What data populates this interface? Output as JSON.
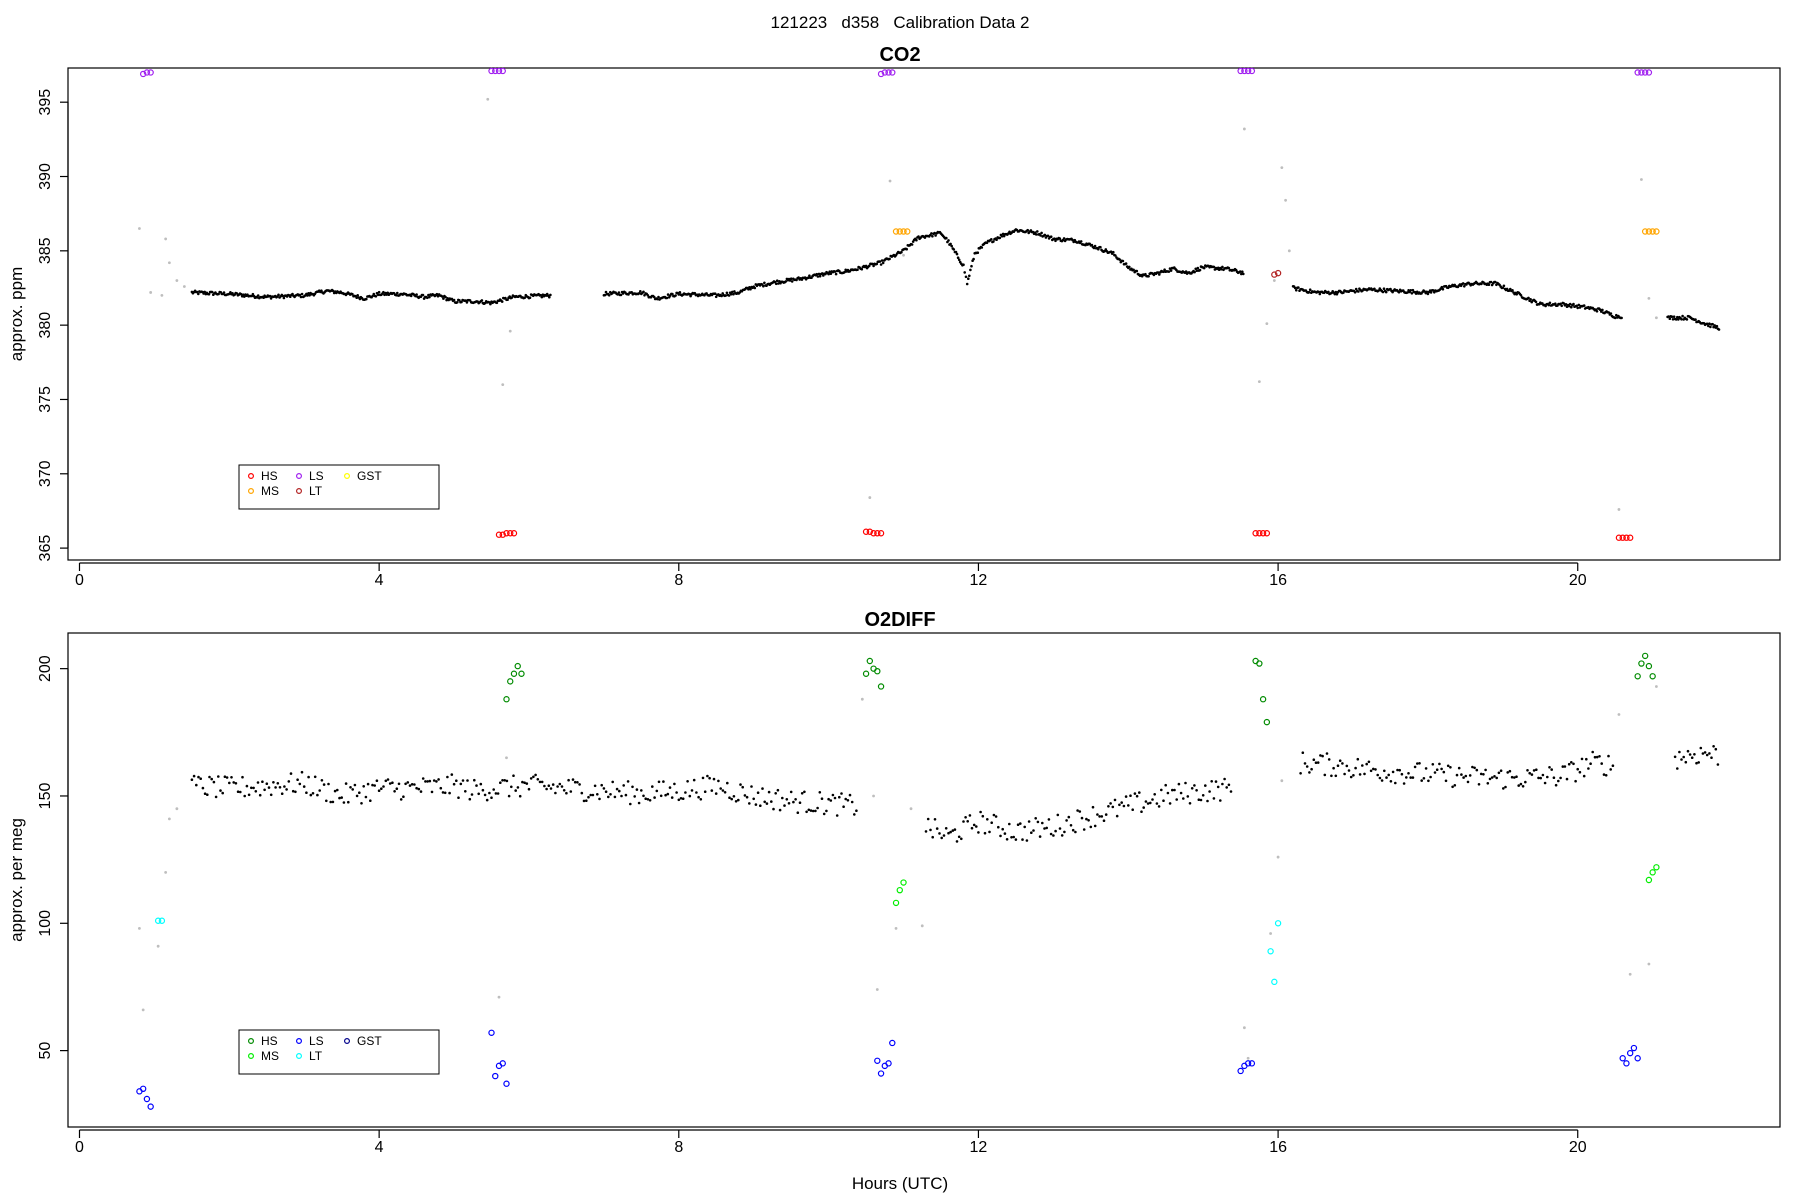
{
  "page_title": "121223   d358   Calibration Data 2",
  "xlabel": "Hours (UTC)",
  "chart_data": [
    {
      "type": "scatter",
      "title": "CO2",
      "xlabel": "",
      "ylabel": "approx. ppm",
      "xlim": [
        -0.1,
        22.7
      ],
      "ylim": [
        364.2,
        397.3
      ],
      "xticks": [
        0,
        4,
        8,
        12,
        16,
        20
      ],
      "yticks": [
        365,
        370,
        375,
        380,
        385,
        390,
        395
      ],
      "legend_position": "bottom-left",
      "legend": [
        {
          "label": "HS",
          "color": "#ff0000"
        },
        {
          "label": "MS",
          "color": "#ffa500"
        },
        {
          "label": "LS",
          "color": "#a020f0"
        },
        {
          "label": "LT",
          "color": "#b22222"
        },
        {
          "label": "GST",
          "color": "#ffff00"
        }
      ],
      "colors": {
        "ambient": "#000000",
        "flush": "#bebebe"
      },
      "ambient": [
        [
          1.5,
          382.2
        ],
        [
          2.0,
          382.1
        ],
        [
          2.5,
          381.9
        ],
        [
          3.0,
          382.0
        ],
        [
          3.3,
          382.3
        ],
        [
          3.5,
          382.2
        ],
        [
          3.8,
          381.8
        ],
        [
          4.0,
          382.1
        ],
        [
          4.3,
          382.1
        ],
        [
          4.6,
          381.9
        ],
        [
          4.8,
          382.0
        ],
        [
          5.0,
          381.6
        ],
        [
          5.3,
          381.6
        ],
        [
          5.5,
          381.5
        ],
        [
          5.8,
          381.9
        ],
        [
          6.3,
          382.0
        ],
        [
          7.0,
          382.1
        ],
        [
          7.5,
          382.2
        ],
        [
          7.7,
          381.8
        ],
        [
          8.0,
          382.1
        ],
        [
          8.5,
          382.0
        ],
        [
          8.8,
          382.2
        ],
        [
          9.0,
          382.6
        ],
        [
          9.3,
          382.9
        ],
        [
          9.6,
          383.1
        ],
        [
          10.0,
          383.5
        ],
        [
          10.2,
          383.6
        ],
        [
          10.4,
          383.8
        ],
        [
          10.7,
          384.2
        ],
        [
          11.0,
          385.0
        ],
        [
          11.2,
          385.9
        ],
        [
          11.5,
          386.2
        ],
        [
          11.6,
          385.6
        ],
        [
          11.8,
          384.0
        ],
        [
          11.85,
          382.8
        ],
        [
          11.95,
          384.8
        ],
        [
          12.1,
          385.5
        ],
        [
          12.3,
          386.0
        ],
        [
          12.5,
          386.4
        ],
        [
          12.8,
          386.2
        ],
        [
          13.0,
          385.8
        ],
        [
          13.3,
          385.7
        ],
        [
          13.6,
          385.2
        ],
        [
          13.8,
          384.8
        ],
        [
          14.0,
          383.9
        ],
        [
          14.2,
          383.3
        ],
        [
          14.4,
          383.5
        ],
        [
          14.6,
          383.8
        ],
        [
          14.8,
          383.5
        ],
        [
          15.0,
          383.9
        ],
        [
          15.3,
          383.8
        ],
        [
          15.55,
          383.5
        ],
        [
          16.2,
          382.5
        ],
        [
          16.5,
          382.2
        ],
        [
          16.8,
          382.2
        ],
        [
          17.2,
          382.4
        ],
        [
          17.6,
          382.3
        ],
        [
          18.0,
          382.2
        ],
        [
          18.3,
          382.6
        ],
        [
          18.6,
          382.8
        ],
        [
          18.9,
          382.8
        ],
        [
          19.2,
          382.1
        ],
        [
          19.5,
          381.4
        ],
        [
          19.8,
          381.4
        ],
        [
          20.1,
          381.2
        ],
        [
          20.3,
          381.0
        ],
        [
          20.5,
          380.6
        ],
        [
          20.6,
          380.6
        ],
        [
          21.2,
          380.5
        ],
        [
          21.5,
          380.5
        ],
        [
          21.7,
          380.1
        ],
        [
          21.9,
          379.8
        ]
      ],
      "flush": [
        [
          0.8,
          386.5
        ],
        [
          0.95,
          382.2
        ],
        [
          1.1,
          382.0
        ],
        [
          1.15,
          385.8
        ],
        [
          1.2,
          384.2
        ],
        [
          1.3,
          383.0
        ],
        [
          1.4,
          382.6
        ],
        [
          5.45,
          395.2
        ],
        [
          5.65,
          376.0
        ],
        [
          5.75,
          379.6
        ],
        [
          10.55,
          368.4
        ],
        [
          10.82,
          389.7
        ],
        [
          11.0,
          384.7
        ],
        [
          15.55,
          393.2
        ],
        [
          15.75,
          376.2
        ],
        [
          15.85,
          380.1
        ],
        [
          15.95,
          383.0
        ],
        [
          16.05,
          390.6
        ],
        [
          16.1,
          388.4
        ],
        [
          16.15,
          385.0
        ],
        [
          20.55,
          367.6
        ],
        [
          20.85,
          389.8
        ],
        [
          20.95,
          381.8
        ],
        [
          21.05,
          380.5
        ]
      ],
      "calibration": [
        {
          "label": "LS",
          "x": [
            0.85,
            0.9,
            0.95
          ],
          "y": [
            396.9,
            397.0,
            397.0
          ]
        },
        {
          "label": "HS",
          "x": [
            5.6,
            5.65,
            5.7,
            5.75,
            5.8
          ],
          "y": [
            365.9,
            365.9,
            366.0,
            366.0,
            366.0
          ]
        },
        {
          "label": "LS",
          "x": [
            5.5,
            5.55,
            5.6,
            5.65
          ],
          "y": [
            397.1,
            397.1,
            397.1,
            397.1
          ]
        },
        {
          "label": "LS",
          "x": [
            10.7,
            10.75,
            10.8,
            10.85
          ],
          "y": [
            396.9,
            397.0,
            397.0,
            397.0
          ]
        },
        {
          "label": "HS",
          "x": [
            10.5,
            10.55,
            10.6,
            10.65,
            10.7
          ],
          "y": [
            366.1,
            366.1,
            366.0,
            366.0,
            366.0
          ]
        },
        {
          "label": "MS",
          "x": [
            10.9,
            10.95,
            11.0,
            11.05
          ],
          "y": [
            386.3,
            386.3,
            386.3,
            386.3
          ]
        },
        {
          "label": "LS",
          "x": [
            15.5,
            15.55,
            15.6,
            15.65
          ],
          "y": [
            397.1,
            397.1,
            397.1,
            397.1
          ]
        },
        {
          "label": "HS",
          "x": [
            15.7,
            15.75,
            15.8,
            15.85
          ],
          "y": [
            366.0,
            366.0,
            366.0,
            366.0
          ]
        },
        {
          "label": "LT",
          "x": [
            15.95,
            16.0
          ],
          "y": [
            383.4,
            383.5
          ]
        },
        {
          "label": "LS",
          "x": [
            20.8,
            20.85,
            20.9,
            20.95
          ],
          "y": [
            397.0,
            397.0,
            397.0,
            397.0
          ]
        },
        {
          "label": "HS",
          "x": [
            20.55,
            20.6,
            20.65,
            20.7
          ],
          "y": [
            365.7,
            365.7,
            365.7,
            365.7
          ]
        },
        {
          "label": "MS",
          "x": [
            20.9,
            20.95,
            21.0,
            21.05
          ],
          "y": [
            386.3,
            386.3,
            386.3,
            386.3
          ]
        }
      ]
    },
    {
      "type": "scatter",
      "title": "O2DIFF",
      "xlabel": "Hours (UTC)",
      "ylabel": "approx. per meg",
      "xlim": [
        -0.1,
        22.7
      ],
      "ylim": [
        20,
        214
      ],
      "xticks": [
        0,
        4,
        8,
        12,
        16,
        20
      ],
      "yticks": [
        50,
        100,
        150,
        200
      ],
      "legend_position": "bottom-left",
      "legend": [
        {
          "label": "HS",
          "color": "#008b00"
        },
        {
          "label": "MS",
          "color": "#00ee00"
        },
        {
          "label": "LS",
          "color": "#0000ff"
        },
        {
          "label": "LT",
          "color": "#00ffff"
        },
        {
          "label": "GST",
          "color": "#00008b"
        }
      ],
      "colors": {
        "ambient": "#000000",
        "flush": "#bebebe"
      },
      "ambient": [
        [
          1.5,
          154
        ],
        [
          2.0,
          153
        ],
        [
          2.5,
          154
        ],
        [
          3.0,
          155
        ],
        [
          3.5,
          150
        ],
        [
          4.0,
          153
        ],
        [
          4.5,
          153
        ],
        [
          5.0,
          154
        ],
        [
          5.3,
          152
        ],
        [
          5.5,
          153
        ],
        [
          6.0,
          154
        ],
        [
          6.5,
          153
        ],
        [
          7.0,
          152
        ],
        [
          7.5,
          151
        ],
        [
          8.0,
          152
        ],
        [
          8.5,
          154
        ],
        [
          9.0,
          150
        ],
        [
          9.5,
          148
        ],
        [
          10.0,
          147
        ],
        [
          10.4,
          146
        ],
        [
          11.3,
          138
        ],
        [
          11.6,
          134
        ],
        [
          12.0,
          140
        ],
        [
          12.5,
          136
        ],
        [
          13.0,
          138
        ],
        [
          13.5,
          142
        ],
        [
          14.0,
          146
        ],
        [
          14.5,
          150
        ],
        [
          15.0,
          152
        ],
        [
          15.4,
          153
        ],
        [
          16.3,
          163
        ],
        [
          16.8,
          162
        ],
        [
          17.3,
          160
        ],
        [
          17.8,
          159
        ],
        [
          18.3,
          158
        ],
        [
          18.8,
          157
        ],
        [
          19.3,
          157
        ],
        [
          19.8,
          158
        ],
        [
          20.2,
          163
        ],
        [
          20.5,
          162
        ],
        [
          21.3,
          165
        ],
        [
          21.7,
          167
        ],
        [
          21.9,
          166
        ]
      ],
      "flush": [
        [
          0.8,
          98
        ],
        [
          0.85,
          66
        ],
        [
          1.05,
          91
        ],
        [
          1.15,
          120
        ],
        [
          1.2,
          141
        ],
        [
          1.3,
          145
        ],
        [
          5.6,
          71
        ],
        [
          5.7,
          165
        ],
        [
          10.45,
          188
        ],
        [
          10.6,
          150
        ],
        [
          10.65,
          74
        ],
        [
          10.9,
          98
        ],
        [
          11.1,
          145
        ],
        [
          11.25,
          99
        ],
        [
          15.55,
          59
        ],
        [
          15.6,
          47
        ],
        [
          15.9,
          96
        ],
        [
          16.0,
          126
        ],
        [
          16.05,
          156
        ],
        [
          20.55,
          182
        ],
        [
          20.7,
          80
        ],
        [
          20.95,
          84
        ],
        [
          21.05,
          193
        ]
      ],
      "calibration": [
        {
          "label": "LS",
          "x": [
            0.8,
            0.85,
            0.9,
            0.95
          ],
          "y": [
            34,
            35,
            31,
            28
          ]
        },
        {
          "label": "LT",
          "x": [
            1.05,
            1.1
          ],
          "y": [
            101,
            101
          ]
        },
        {
          "label": "LS",
          "x": [
            5.5,
            5.55,
            5.6,
            5.65,
            5.7
          ],
          "y": [
            57,
            40,
            44,
            45,
            37
          ]
        },
        {
          "label": "HS",
          "x": [
            5.7,
            5.75,
            5.8,
            5.85,
            5.9
          ],
          "y": [
            188,
            195,
            198,
            201,
            198
          ]
        },
        {
          "label": "HS",
          "x": [
            10.5,
            10.55,
            10.6,
            10.65,
            10.7
          ],
          "y": [
            198,
            203,
            200,
            199,
            193
          ]
        },
        {
          "label": "LS",
          "x": [
            10.65,
            10.7,
            10.75,
            10.8,
            10.85
          ],
          "y": [
            46,
            41,
            44,
            45,
            53
          ]
        },
        {
          "label": "MS",
          "x": [
            10.9,
            10.95,
            11.0
          ],
          "y": [
            108,
            113,
            116
          ]
        },
        {
          "label": "LS",
          "x": [
            15.5,
            15.55,
            15.6,
            15.65
          ],
          "y": [
            42,
            44,
            45,
            45
          ]
        },
        {
          "label": "HS",
          "x": [
            15.7,
            15.75,
            15.8,
            15.85
          ],
          "y": [
            203,
            202,
            188,
            179
          ]
        },
        {
          "label": "LT",
          "x": [
            15.9,
            15.95,
            16.0
          ],
          "y": [
            89,
            77,
            100
          ]
        },
        {
          "label": "HS",
          "x": [
            20.8,
            20.85,
            20.9,
            20.95,
            21.0
          ],
          "y": [
            197,
            202,
            205,
            201,
            197
          ]
        },
        {
          "label": "LS",
          "x": [
            20.6,
            20.65,
            20.7,
            20.75,
            20.8
          ],
          "y": [
            47,
            45,
            49,
            51,
            47
          ]
        },
        {
          "label": "MS",
          "x": [
            20.95,
            21.0,
            21.05
          ],
          "y": [
            117,
            120,
            122
          ]
        }
      ]
    }
  ]
}
